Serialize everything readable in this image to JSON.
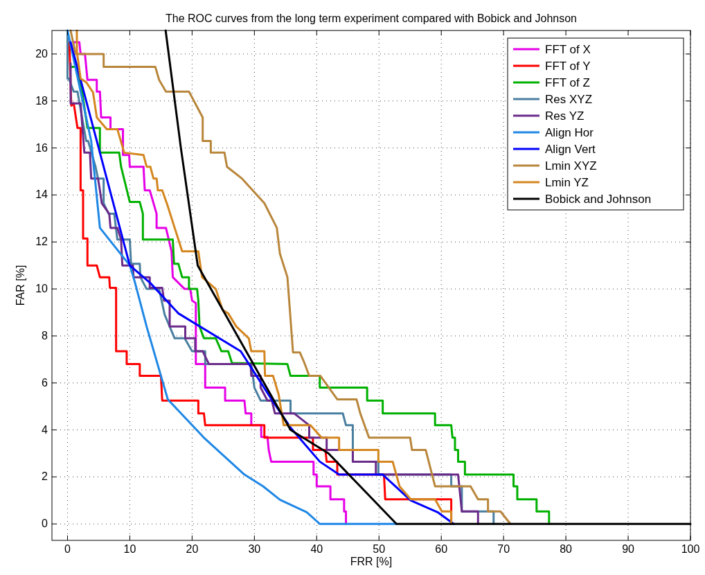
{
  "chart_data": {
    "type": "line",
    "title": "The ROC curves from the long term experiment compared with Bobick and Johnson",
    "xlabel": "FRR [%]",
    "ylabel": "FAR [%]",
    "xlim": [
      -2.5,
      100
    ],
    "ylim": [
      -0.7,
      21
    ],
    "xticks": [
      0,
      10,
      20,
      30,
      40,
      50,
      60,
      70,
      80,
      90,
      100
    ],
    "yticks": [
      0,
      2,
      4,
      6,
      8,
      10,
      12,
      14,
      16,
      18,
      20
    ],
    "grid": true,
    "legend": "top right",
    "line_style": "solid",
    "marker": "none",
    "series": [
      {
        "name": "FFT of X",
        "color": "#e600e6",
        "x": [
          1,
          1.9,
          2.1,
          2.8,
          3.2,
          4.7,
          4.7,
          5.2,
          5.4,
          6.9,
          6.9,
          8.9,
          8.9,
          9.9,
          10,
          12.2,
          12.4,
          13.2,
          14.3,
          14.3,
          15.8,
          16.7,
          16.9,
          18.8,
          19.7,
          20,
          20.6,
          20.6,
          22.1,
          22.1,
          25.3,
          25.3,
          28.4,
          28.6,
          29.5,
          29.5,
          31.1,
          31.1,
          32.1,
          32.3,
          32.7,
          39.5,
          39.5,
          40,
          40,
          42.2,
          42.2,
          44.4,
          44.4,
          44.7,
          44.7
        ],
        "values": [
          20.5,
          20.5,
          20,
          20,
          18.9,
          18.9,
          18.4,
          18.4,
          17.3,
          17.3,
          16.8,
          16.8,
          15.7,
          15.7,
          15.2,
          15.2,
          14.2,
          14.2,
          13.2,
          12.6,
          12.6,
          11.6,
          10.5,
          10,
          10,
          9.5,
          9.4,
          6.8,
          6.8,
          5.8,
          5.8,
          5.25,
          5.25,
          4.7,
          4.7,
          4.2,
          4.2,
          3.7,
          3.7,
          3.15,
          2.65,
          2.65,
          2.1,
          2.1,
          1.6,
          1.6,
          1.05,
          1.05,
          0.53,
          0.53,
          0
        ]
      },
      {
        "name": "FFT of Y",
        "color": "#ff0000",
        "x": [
          0.3,
          0.6,
          1,
          1.6,
          2.1,
          2.1,
          2.5,
          2.5,
          3.2,
          3.2,
          4.7,
          5.2,
          6.7,
          6.8,
          7.8,
          7.8,
          9.5,
          9.5,
          11.6,
          11.6,
          15,
          15.2,
          21,
          21,
          21.9,
          22.1,
          31.6,
          31.6,
          39.4,
          39.4,
          41.4,
          41.6,
          43.3,
          43.3,
          50.8,
          51,
          61.6,
          61.6
        ],
        "values": [
          20.5,
          17.8,
          17.9,
          16.85,
          16.85,
          14.2,
          14.2,
          12.15,
          12.15,
          11,
          11,
          10.5,
          10.5,
          10.05,
          10.05,
          7.35,
          7.35,
          6.8,
          6.8,
          6.3,
          6.3,
          5.25,
          5.25,
          4.7,
          4.7,
          4.2,
          4.2,
          3.67,
          3.67,
          3.15,
          3.15,
          2.65,
          2.65,
          2.1,
          2.1,
          1.05,
          1.05,
          0
        ]
      },
      {
        "name": "FFT of Z",
        "color": "#00b000",
        "x": [
          0.5,
          1.3,
          2.2,
          3.2,
          5.2,
          5.2,
          8.3,
          8.6,
          10,
          11.6,
          12.1,
          12.1,
          16.9,
          17.1,
          17.8,
          18.4,
          19.5,
          19.5,
          20.8,
          21,
          21.2,
          21.9,
          23.8,
          24.7,
          25.8,
          26.4,
          35.3,
          35.8,
          40.5,
          40.5,
          48.1,
          48.1,
          50.6,
          50.6,
          59,
          59,
          61.6,
          61.8,
          62.2,
          62.2,
          62.7,
          62.7,
          63.8,
          63.8,
          71.6,
          71.6,
          72.2,
          72.2,
          75.3,
          75.3,
          77.3,
          77.3
        ],
        "values": [
          19.45,
          19.45,
          18.65,
          16.85,
          16.85,
          15.8,
          15.8,
          15.2,
          13.7,
          13.7,
          13.2,
          12.1,
          12.1,
          11.07,
          11.07,
          10.5,
          10.5,
          10,
          10,
          9.5,
          8.4,
          7.9,
          7.9,
          7.35,
          7.35,
          6.85,
          6.8,
          6.3,
          6.3,
          5.8,
          5.8,
          5.25,
          5.25,
          4.7,
          4.7,
          4.2,
          4.2,
          3.67,
          3.67,
          3.15,
          3.15,
          2.65,
          2.65,
          2.1,
          2.1,
          1.6,
          1.6,
          1.05,
          1.05,
          0.53,
          0.53,
          0
        ]
      },
      {
        "name": "Res XYZ",
        "color": "#4a7fa0",
        "x": [
          0,
          0,
          0.2,
          1,
          1.6,
          3,
          3.3,
          4.5,
          4.9,
          5.8,
          5.8,
          6.6,
          7.5,
          8,
          10,
          10.2,
          11.6,
          11.7,
          12.7,
          14.7,
          15.6,
          17.2,
          18.8,
          20,
          22.1,
          22.1,
          29.5,
          30,
          31,
          35.8,
          35.8,
          44.2,
          44.7,
          45.8,
          45.8,
          49.9,
          49.9,
          61.6,
          61.6,
          63.3,
          63.3,
          68.4,
          68.4
        ],
        "values": [
          21,
          18.95,
          18.95,
          18.4,
          18.4,
          16.3,
          16.3,
          15.2,
          14.7,
          14.7,
          13.65,
          13.2,
          13.2,
          12.1,
          12.1,
          11.07,
          11.07,
          10.5,
          10,
          10,
          8.9,
          7.9,
          7.9,
          7.35,
          7.35,
          6.8,
          6.8,
          5.8,
          5.25,
          5.25,
          4.7,
          4.7,
          4.2,
          4.2,
          2.65,
          2.65,
          2.1,
          2.1,
          1.6,
          1.6,
          0.53,
          0.53,
          0
        ]
      },
      {
        "name": "Res YZ",
        "color": "#6a2a8a",
        "x": [
          0.5,
          0.5,
          2.1,
          2.7,
          3.6,
          3.8,
          4.9,
          5.2,
          5.5,
          6.7,
          6.9,
          8,
          8.6,
          8.8,
          10.5,
          10.6,
          13.2,
          13.2,
          15.2,
          15.5,
          16.4,
          16.4,
          18.9,
          18.9,
          20.5,
          20.5,
          21.7,
          22.7,
          29.4,
          29.5,
          31,
          31,
          32.1,
          32.8,
          33.3,
          36.4,
          38.8,
          38.8,
          41.6,
          41.6,
          45.8,
          45.8,
          49.5,
          49.5,
          62.7,
          63.3,
          65.9,
          65.9
        ],
        "values": [
          19.6,
          17.9,
          17.9,
          15.8,
          15.8,
          14.7,
          14.7,
          14.2,
          13.65,
          13.2,
          12.6,
          12.6,
          12.1,
          11,
          11,
          10.5,
          10.5,
          10.05,
          10.05,
          9.5,
          9.5,
          8.4,
          8.4,
          7.9,
          7.9,
          7.35,
          7.35,
          6.8,
          6.8,
          6.3,
          6.3,
          5.8,
          5.25,
          5.25,
          4.7,
          4.7,
          4.2,
          3.67,
          3.67,
          3.15,
          3.15,
          2.65,
          2.65,
          2.1,
          2.1,
          0.53,
          0.53,
          0
        ]
      },
      {
        "name": "Align Hor",
        "color": "#1e87e5",
        "x": [
          0,
          3.8,
          5.2,
          10,
          10.8,
          12.7,
          15,
          16.1,
          21.9,
          28.4,
          31.4,
          34.1,
          38.4,
          40.5,
          52.8
        ],
        "values": [
          21,
          16.3,
          12.6,
          11,
          10.3,
          8.4,
          6.3,
          5.3,
          3.67,
          2.1,
          1.6,
          1.03,
          0.5,
          0,
          0
        ]
      },
      {
        "name": "Align Vert",
        "color": "#0000ff",
        "x": [
          0.5,
          10,
          13.3,
          17.8,
          27.8,
          33,
          35.8,
          40.5,
          43.6,
          50.6,
          55.1,
          59.4,
          62
        ],
        "values": [
          20.5,
          11,
          10.25,
          8.96,
          7.35,
          5.2,
          4.1,
          2.65,
          2.1,
          2.1,
          1,
          0.5,
          0
        ]
      },
      {
        "name": "Lmin XYZ",
        "color": "#b8863b",
        "x": [
          0.5,
          1.3,
          5.8,
          5.8,
          14.1,
          14.7,
          15.8,
          19.5,
          21.7,
          21.7,
          23,
          23,
          25.2,
          25.6,
          28,
          31.6,
          33.6,
          34.1,
          35.3,
          36.2,
          37.3,
          38,
          38.8,
          40.6,
          43.3,
          46.4,
          47,
          48.4,
          55,
          55.3,
          57.5,
          59,
          64.7,
          65.9,
          67.5,
          67.5,
          69.5,
          71.1
        ],
        "values": [
          21,
          20,
          20,
          19.45,
          19.45,
          18.9,
          18.4,
          18.4,
          17.3,
          16.3,
          16.3,
          15.8,
          15.8,
          15.2,
          14.7,
          13.65,
          12.6,
          11.5,
          10.5,
          7.3,
          7.3,
          6.87,
          6.3,
          6.3,
          5.3,
          5.3,
          4.7,
          3.67,
          3.67,
          3.15,
          3.15,
          1.6,
          1.6,
          1.05,
          1.05,
          0.53,
          0.53,
          0
        ]
      },
      {
        "name": "Lmin YZ",
        "color": "#d4861f",
        "x": [
          1.5,
          1.5,
          2.1,
          3,
          4.1,
          4.7,
          6.3,
          8,
          9.1,
          12.2,
          12.7,
          13.3,
          13.8,
          14.3,
          14.5,
          15.2,
          16,
          17.2,
          18.4,
          21,
          21.6,
          23.8,
          24.9,
          25.8,
          27.1,
          29.1,
          29.5,
          31.6,
          31.7,
          33,
          33.9,
          34.7,
          39,
          40.8,
          43.6,
          43.6,
          49.9,
          49.9,
          52.2,
          53.3,
          55.1,
          59,
          60.1,
          61.6,
          61.6
        ],
        "values": [
          21,
          20.1,
          18.95,
          18.8,
          18.36,
          17.3,
          16.8,
          16.8,
          15.8,
          15.7,
          15.2,
          15.2,
          14.7,
          14.7,
          14.2,
          14.2,
          13.6,
          12.6,
          11.6,
          11.6,
          10.5,
          10,
          9.1,
          8.96,
          8.4,
          7.9,
          7.35,
          7.35,
          6.3,
          6.3,
          5.5,
          4.2,
          4.2,
          3.67,
          3.67,
          3.15,
          3.15,
          2.65,
          2.65,
          1.6,
          1.05,
          1.05,
          0.53,
          0.53,
          0
        ]
      },
      {
        "name": "Bobick and Johnson",
        "color": "#000000",
        "x": [
          15.75,
          18.2,
          20.9,
          35.8,
          41.9,
          52.8,
          100
        ],
        "values": [
          21,
          16,
          11,
          4,
          3,
          0,
          0
        ]
      }
    ]
  }
}
